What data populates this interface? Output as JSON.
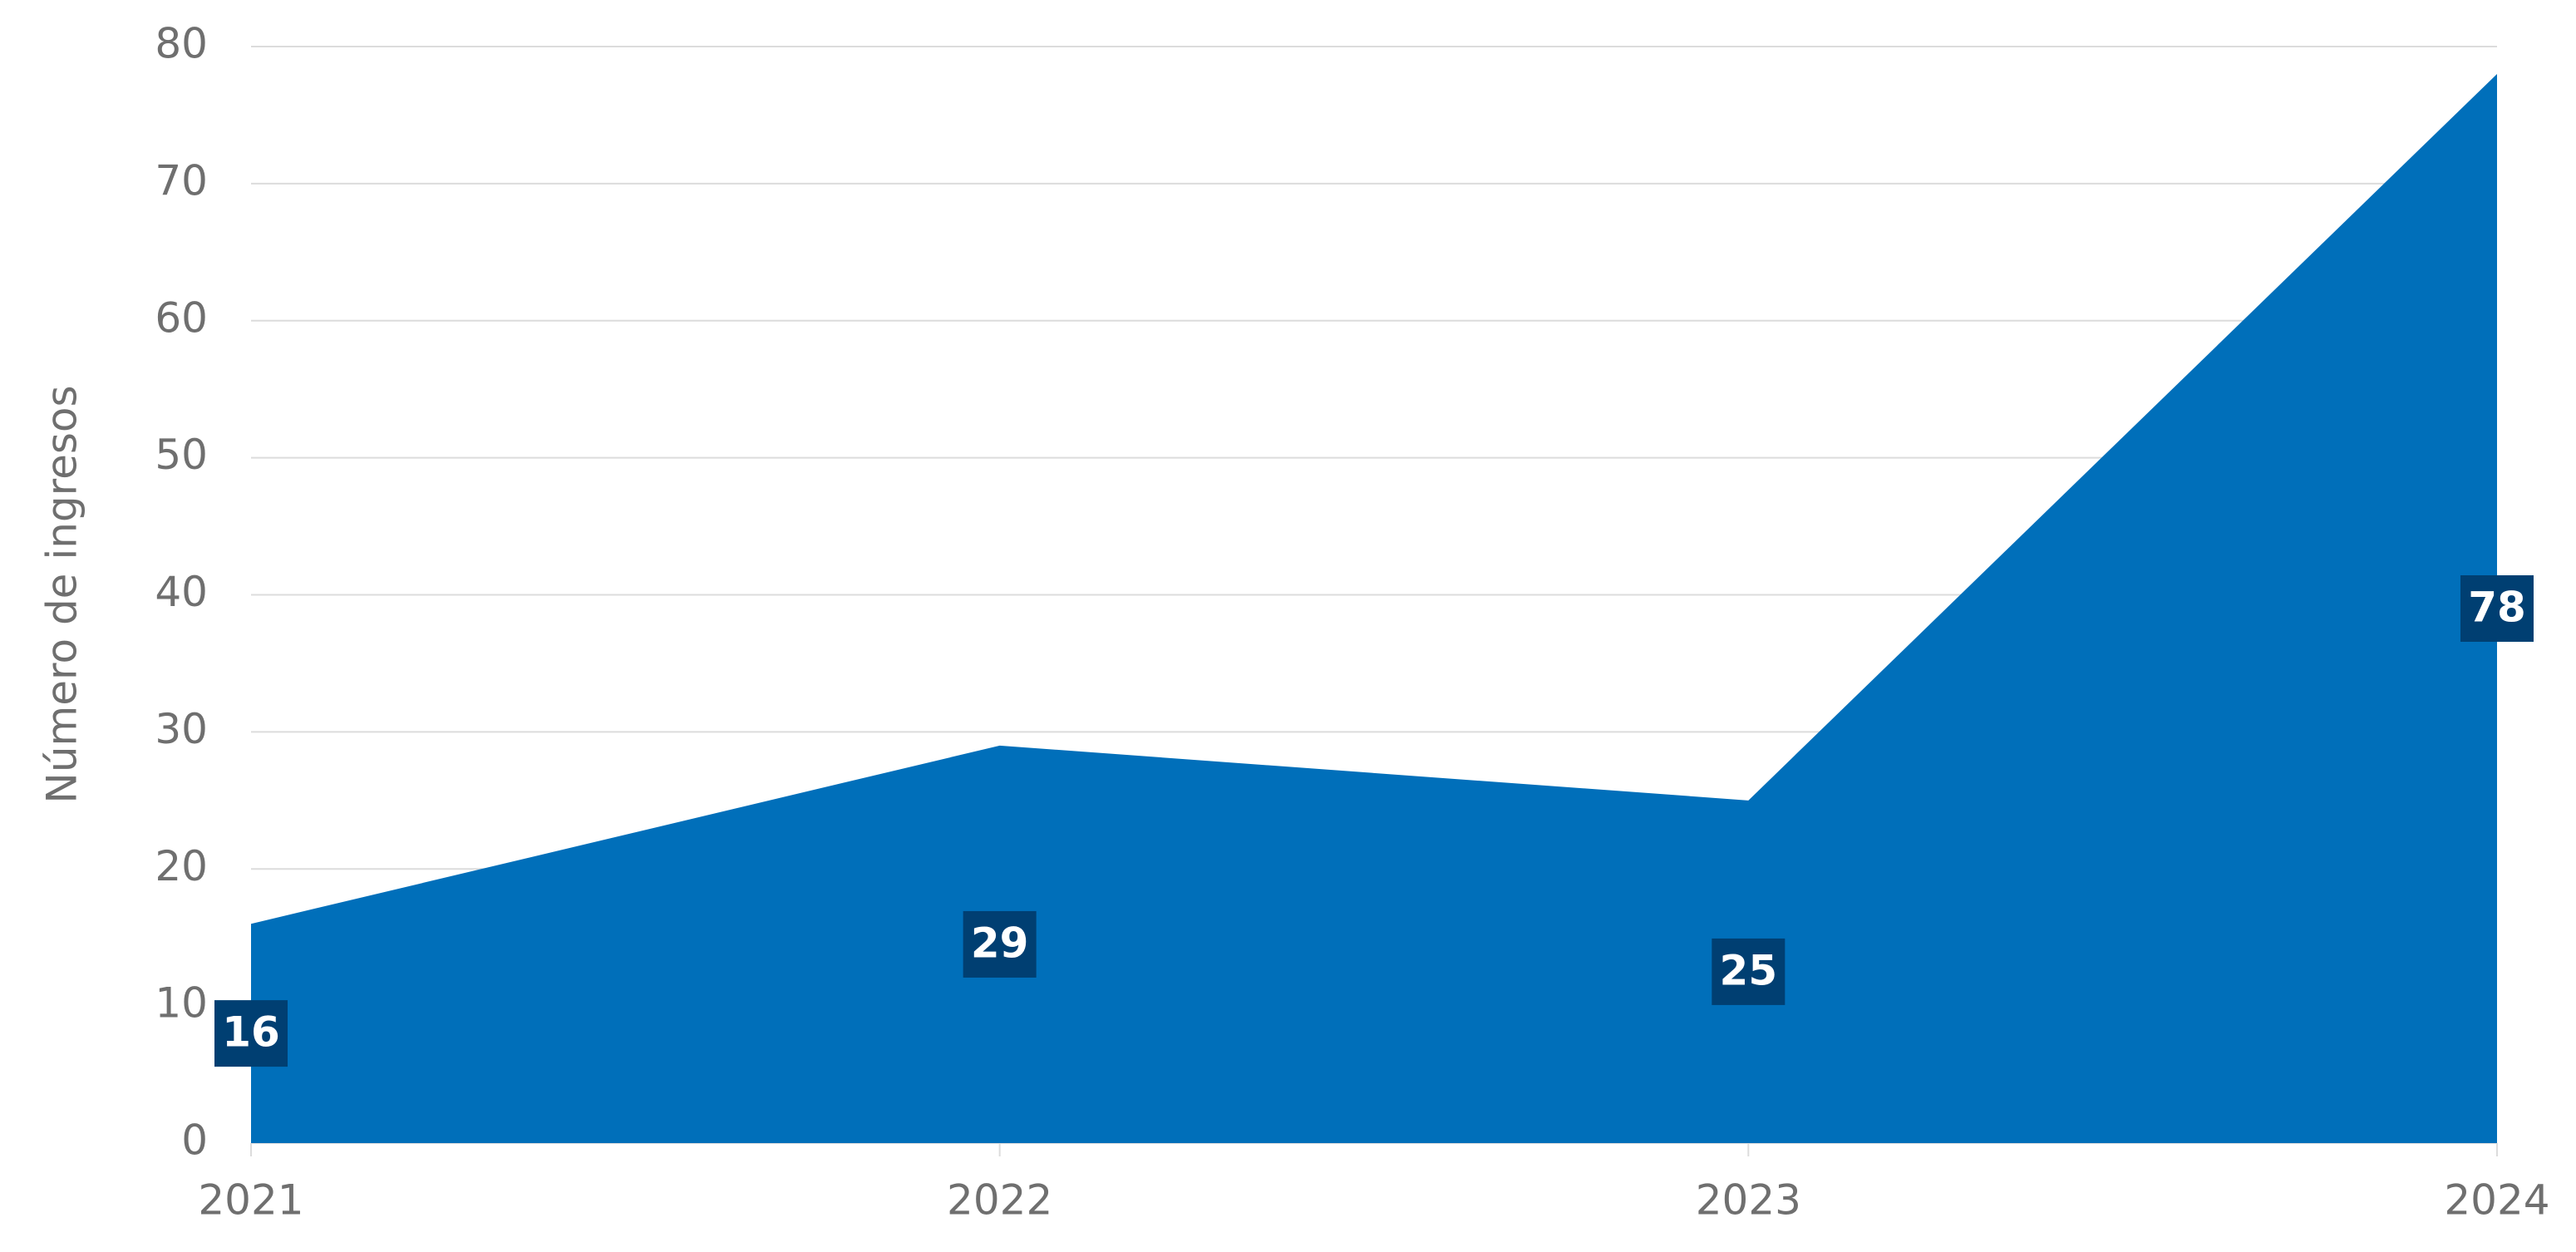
{
  "chart_data": {
    "type": "area",
    "y_label": "Número de ingresos",
    "categories": [
      "2021",
      "2022",
      "2023",
      "2024"
    ],
    "series": [
      {
        "name": "Número de ingresos",
        "color": "#006fba",
        "values": [
          16,
          29,
          25,
          78
        ]
      }
    ],
    "label_color": "#003f72",
    "ylim": [
      0,
      80
    ],
    "yticks": [
      0,
      10,
      20,
      30,
      40,
      50,
      60,
      70,
      80
    ],
    "grid": true
  }
}
